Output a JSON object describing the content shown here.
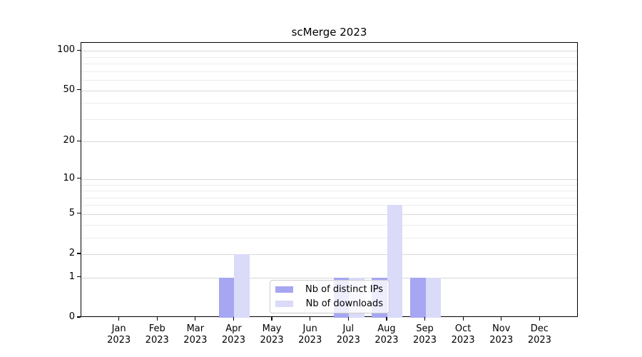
{
  "chart_data": {
    "type": "bar",
    "title": "scMerge 2023",
    "categories": [
      "Jan",
      "Feb",
      "Mar",
      "Apr",
      "May",
      "Jun",
      "Jul",
      "Aug",
      "Sep",
      "Oct",
      "Nov",
      "Dec"
    ],
    "category_year": "2023",
    "series": [
      {
        "name": "Nb of distinct IPs",
        "color": "#a6a6f2",
        "values": [
          0,
          0,
          0,
          1,
          0,
          0,
          1,
          1,
          1,
          0,
          0,
          0
        ]
      },
      {
        "name": "Nb of downloads",
        "color": "#dadaf9",
        "values": [
          0,
          0,
          0,
          2,
          0,
          0,
          1,
          6,
          1,
          0,
          0,
          0
        ]
      }
    ],
    "y_scale": "log1p",
    "ylim": [
      0,
      115
    ],
    "y_ticks_major": [
      0,
      1,
      2,
      5,
      10,
      20,
      50,
      100
    ],
    "y_ticks_minor": [
      3,
      4,
      6,
      7,
      8,
      9,
      30,
      40,
      60,
      70,
      80,
      90
    ],
    "grid": "on",
    "legend_position": "lower center",
    "colors": {
      "grid_major": "#d7d7d7",
      "grid_minor": "#ededed",
      "spine": "#000000",
      "legend_border": "#cccccc",
      "background": "#ffffff"
    }
  }
}
